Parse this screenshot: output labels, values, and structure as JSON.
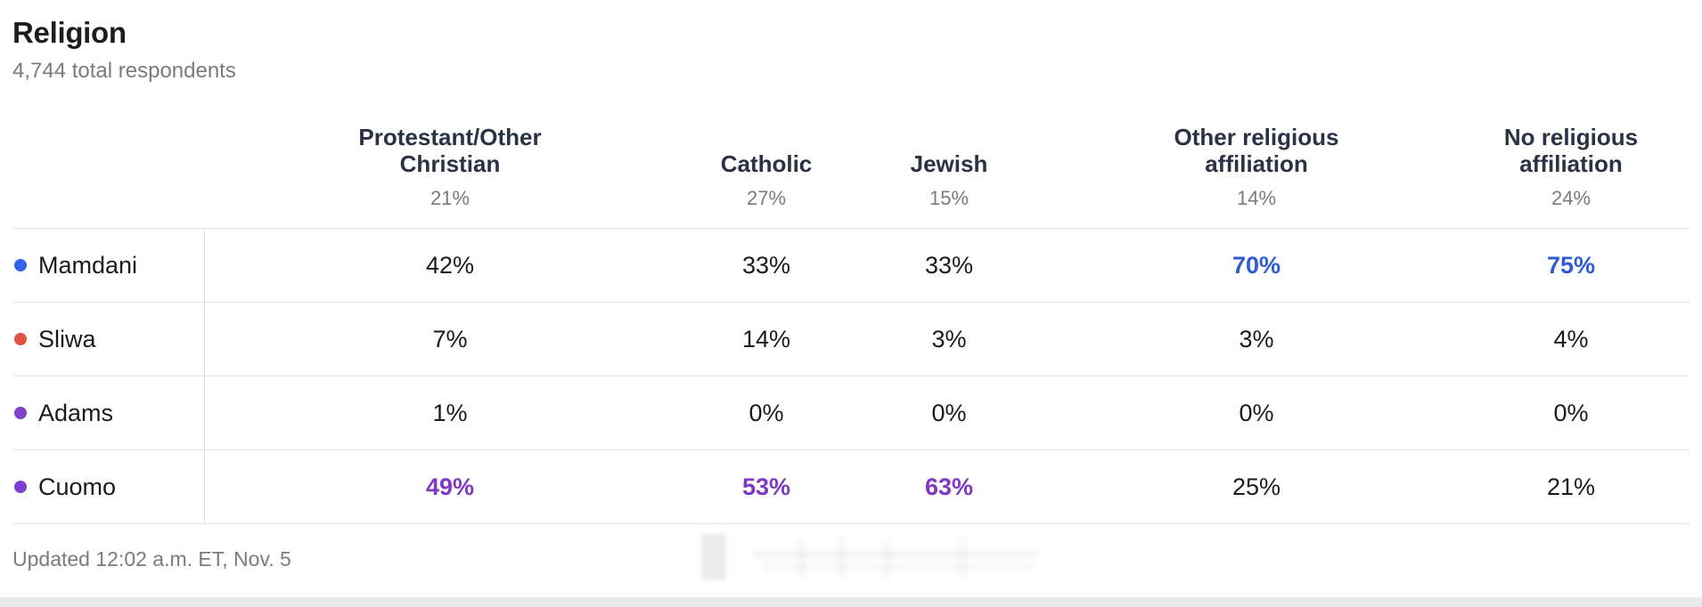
{
  "page": {
    "title": "Religion",
    "subtitle": "4,744 total respondents",
    "updated": "Updated 12:02 a.m. ET, Nov. 5"
  },
  "columns": [
    {
      "label": "Protestant/Other Christian",
      "share": "21%"
    },
    {
      "label": "Catholic",
      "share": "27%"
    },
    {
      "label": "Jewish",
      "share": "15%"
    },
    {
      "label": "Other religious affiliation",
      "share": "14%"
    },
    {
      "label": "No religious affiliation",
      "share": "24%"
    }
  ],
  "rows": [
    {
      "candidate": "Mamdani",
      "dot_color": "#3563e9",
      "values": [
        {
          "text": "42%",
          "style": "normal"
        },
        {
          "text": "33%",
          "style": "normal"
        },
        {
          "text": "33%",
          "style": "normal"
        },
        {
          "text": "70%",
          "style": "blue"
        },
        {
          "text": "75%",
          "style": "blue"
        }
      ]
    },
    {
      "candidate": "Sliwa",
      "dot_color": "#e2503f",
      "values": [
        {
          "text": "7%",
          "style": "normal"
        },
        {
          "text": "14%",
          "style": "normal"
        },
        {
          "text": "3%",
          "style": "normal"
        },
        {
          "text": "3%",
          "style": "normal"
        },
        {
          "text": "4%",
          "style": "normal"
        }
      ]
    },
    {
      "candidate": "Adams",
      "dot_color": "#8143c6",
      "values": [
        {
          "text": "1%",
          "style": "normal"
        },
        {
          "text": "0%",
          "style": "normal"
        },
        {
          "text": "0%",
          "style": "normal"
        },
        {
          "text": "0%",
          "style": "normal"
        },
        {
          "text": "0%",
          "style": "normal"
        }
      ]
    },
    {
      "candidate": "Cuomo",
      "dot_color": "#7c3fd0",
      "values": [
        {
          "text": "49%",
          "style": "purple"
        },
        {
          "text": "53%",
          "style": "purple"
        },
        {
          "text": "63%",
          "style": "purple"
        },
        {
          "text": "25%",
          "style": "normal"
        },
        {
          "text": "21%",
          "style": "normal"
        }
      ]
    }
  ],
  "colors": {
    "highlight_blue": "#2f5bd7",
    "highlight_purple": "#8038c0",
    "header_text": "#2b3245",
    "muted_text": "#7b7b7b",
    "row_border": "#e4e4e4",
    "bottom_bar": "#e9e9e9"
  },
  "chart_data": {
    "type": "table",
    "title": "Religion",
    "subtitle": "4,744 total respondents",
    "categories": [
      "Protestant/Other Christian",
      "Catholic",
      "Jewish",
      "Other religious affiliation",
      "No religious affiliation"
    ],
    "category_shares_pct": [
      21,
      27,
      15,
      14,
      24
    ],
    "series": [
      {
        "name": "Mamdani",
        "values": [
          42,
          33,
          33,
          70,
          75
        ]
      },
      {
        "name": "Sliwa",
        "values": [
          7,
          14,
          3,
          3,
          4
        ]
      },
      {
        "name": "Adams",
        "values": [
          1,
          0,
          0,
          0,
          0
        ]
      },
      {
        "name": "Cuomo",
        "values": [
          49,
          53,
          63,
          25,
          21
        ]
      }
    ],
    "leader_highlights": [
      {
        "candidate": "Mamdani",
        "columns": [
          "Other religious affiliation",
          "No religious affiliation"
        ],
        "color": "#2f5bd7"
      },
      {
        "candidate": "Cuomo",
        "columns": [
          "Protestant/Other Christian",
          "Catholic",
          "Jewish"
        ],
        "color": "#8038c0"
      }
    ],
    "footnote": "Updated 12:02 a.m. ET, Nov. 5"
  }
}
